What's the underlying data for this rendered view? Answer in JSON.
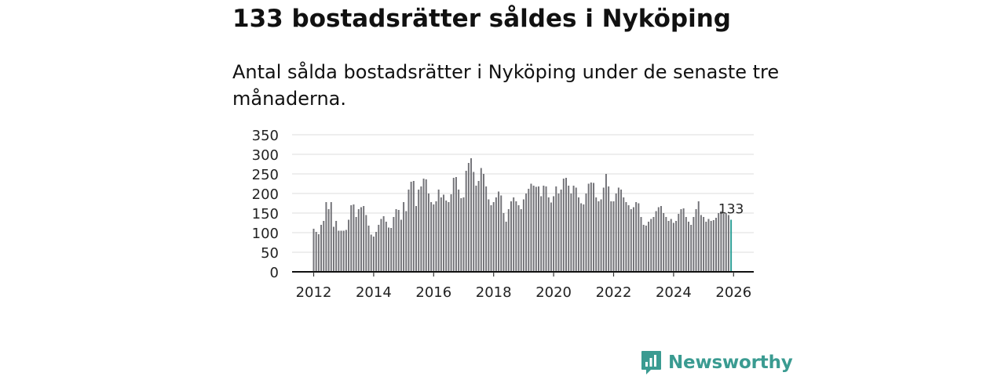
{
  "title": "133 bostadsrätter såldes i Nyköping",
  "subtitle": "Antal sålda bostadsrätter i Nyköping under de senaste tre månaderna.",
  "brand": {
    "name": "Newsworthy",
    "icon": "newsworthy-logo-icon",
    "color": "#3a9b91"
  },
  "colors": {
    "bar": "#737378",
    "highlight": "#2a9d95",
    "grid": "#dddddd",
    "axis": "#111111"
  },
  "chart_data": {
    "type": "bar",
    "title": "133 bostadsrätter såldes i Nyköping",
    "xlabel": "",
    "ylabel": "",
    "ylim": [
      0,
      350
    ],
    "yticks": [
      0,
      50,
      100,
      150,
      200,
      250,
      300,
      350
    ],
    "xlim": [
      2012,
      2026.8
    ],
    "xticks": [
      2012,
      2014,
      2016,
      2018,
      2020,
      2022,
      2024,
      2026
    ],
    "x_start": "2012-01",
    "interval": "monthly (rolling three-month total)",
    "grid": true,
    "highlight_last": true,
    "last_label": "133",
    "values": [
      110,
      102,
      96,
      120,
      130,
      178,
      160,
      178,
      115,
      130,
      105,
      105,
      105,
      107,
      133,
      170,
      172,
      140,
      160,
      165,
      168,
      145,
      118,
      95,
      90,
      102,
      120,
      135,
      142,
      128,
      113,
      112,
      140,
      160,
      158,
      133,
      178,
      155,
      210,
      230,
      232,
      168,
      210,
      218,
      238,
      236,
      200,
      178,
      172,
      180,
      210,
      190,
      197,
      182,
      178,
      198,
      240,
      242,
      210,
      188,
      190,
      258,
      278,
      290,
      255,
      220,
      232,
      265,
      250,
      218,
      185,
      170,
      178,
      190,
      205,
      195,
      150,
      128,
      160,
      180,
      190,
      180,
      170,
      160,
      185,
      200,
      212,
      225,
      220,
      217,
      218,
      193,
      220,
      218,
      190,
      177,
      193,
      218,
      200,
      210,
      238,
      240,
      220,
      200,
      220,
      215,
      190,
      175,
      172,
      200,
      225,
      228,
      227,
      190,
      180,
      185,
      215,
      250,
      218,
      180,
      180,
      200,
      215,
      210,
      190,
      178,
      170,
      160,
      165,
      178,
      175,
      140,
      120,
      118,
      128,
      135,
      140,
      155,
      165,
      168,
      150,
      140,
      130,
      135,
      125,
      130,
      148,
      160,
      162,
      140,
      128,
      120,
      140,
      160,
      180,
      145,
      140,
      128,
      135,
      130,
      132,
      138,
      150,
      155,
      148,
      150,
      145,
      133
    ]
  }
}
